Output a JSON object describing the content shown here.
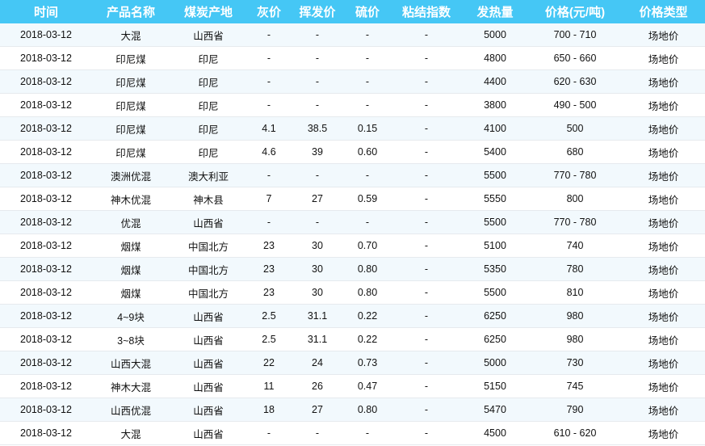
{
  "table": {
    "headers": [
      "时间",
      "产品名称",
      "煤炭产地",
      "灰价",
      "挥发价",
      "硫价",
      "粘结指数",
      "发热量",
      "价格(元/吨)",
      "价格类型"
    ],
    "rows": [
      [
        "2018-03-12",
        "大混",
        "山西省",
        "-",
        "-",
        "-",
        "-",
        "5000",
        "700 - 710",
        "场地价"
      ],
      [
        "2018-03-12",
        "印尼煤",
        "印尼",
        "-",
        "-",
        "-",
        "-",
        "4800",
        "650 - 660",
        "场地价"
      ],
      [
        "2018-03-12",
        "印尼煤",
        "印尼",
        "-",
        "-",
        "-",
        "-",
        "4400",
        "620 - 630",
        "场地价"
      ],
      [
        "2018-03-12",
        "印尼煤",
        "印尼",
        "-",
        "-",
        "-",
        "-",
        "3800",
        "490 - 500",
        "场地价"
      ],
      [
        "2018-03-12",
        "印尼煤",
        "印尼",
        "4.1",
        "38.5",
        "0.15",
        "-",
        "4100",
        "500",
        "场地价"
      ],
      [
        "2018-03-12",
        "印尼煤",
        "印尼",
        "4.6",
        "39",
        "0.60",
        "-",
        "5400",
        "680",
        "场地价"
      ],
      [
        "2018-03-12",
        "澳洲优混",
        "澳大利亚",
        "-",
        "-",
        "-",
        "-",
        "5500",
        "770 - 780",
        "场地价"
      ],
      [
        "2018-03-12",
        "神木优混",
        "神木县",
        "7",
        "27",
        "0.59",
        "-",
        "5550",
        "800",
        "场地价"
      ],
      [
        "2018-03-12",
        "优混",
        "山西省",
        "-",
        "-",
        "-",
        "-",
        "5500",
        "770 - 780",
        "场地价"
      ],
      [
        "2018-03-12",
        "烟煤",
        "中国北方",
        "23",
        "30",
        "0.70",
        "-",
        "5100",
        "740",
        "场地价"
      ],
      [
        "2018-03-12",
        "烟煤",
        "中国北方",
        "23",
        "30",
        "0.80",
        "-",
        "5350",
        "780",
        "场地价"
      ],
      [
        "2018-03-12",
        "烟煤",
        "中国北方",
        "23",
        "30",
        "0.80",
        "-",
        "5500",
        "810",
        "场地价"
      ],
      [
        "2018-03-12",
        "4~9块",
        "山西省",
        "2.5",
        "31.1",
        "0.22",
        "-",
        "6250",
        "980",
        "场地价"
      ],
      [
        "2018-03-12",
        "3~8块",
        "山西省",
        "2.5",
        "31.1",
        "0.22",
        "-",
        "6250",
        "980",
        "场地价"
      ],
      [
        "2018-03-12",
        "山西大混",
        "山西省",
        "22",
        "24",
        "0.73",
        "-",
        "5000",
        "730",
        "场地价"
      ],
      [
        "2018-03-12",
        "神木大混",
        "山西省",
        "11",
        "26",
        "0.47",
        "-",
        "5150",
        "745",
        "场地价"
      ],
      [
        "2018-03-12",
        "山西优混",
        "山西省",
        "18",
        "27",
        "0.80",
        "-",
        "5470",
        "790",
        "场地价"
      ],
      [
        "2018-03-12",
        "大混",
        "山西省",
        "-",
        "-",
        "-",
        "-",
        "4500",
        "610 - 620",
        "场地价"
      ]
    ]
  },
  "colors": {
    "header_bg": "#45c7f5",
    "odd_row_bg": "#f2f9fd"
  }
}
